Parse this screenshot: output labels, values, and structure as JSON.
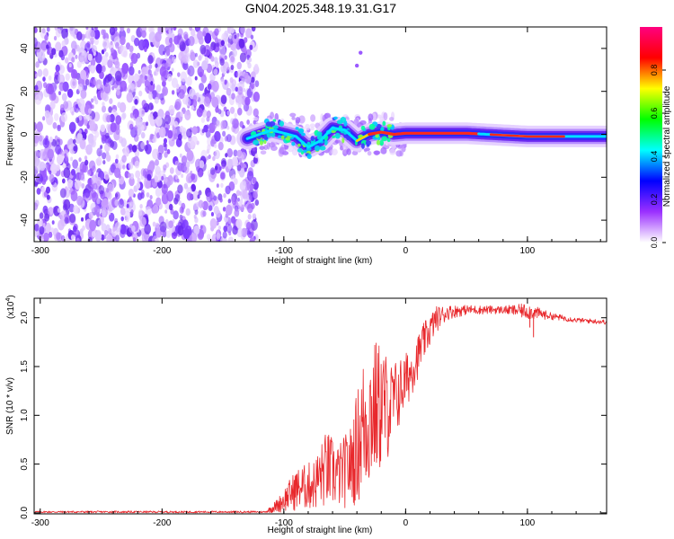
{
  "title": "GN04.2025.348.19.31.G17",
  "chart_data": [
    {
      "type": "heatmap",
      "name": "spectrogram",
      "xlabel": "Height of straight line (km)",
      "ylabel": "Frequency (Hz)",
      "xlim": [
        -305,
        165
      ],
      "ylim": [
        -50,
        50
      ],
      "x_ticks": [
        -300,
        -200,
        -100,
        0,
        100
      ],
      "y_ticks": [
        -40,
        -20,
        0,
        20,
        40
      ],
      "colorbar": {
        "label": "Normalized spectral amplitude",
        "range": [
          0,
          1
        ],
        "ticks": [
          "0.0",
          "0.2",
          "0.4",
          "0.6",
          "0.8"
        ],
        "tick_values": [
          0.0,
          0.2,
          0.4,
          0.6,
          0.8
        ],
        "colors": [
          "#ffffff",
          "#9b30ff",
          "#0000ff",
          "#00ffff",
          "#00ff00",
          "#ffff00",
          "#ff0000",
          "#ff0080"
        ]
      },
      "noise_region_x": [
        -305,
        -125
      ],
      "transition_region_x": [
        -125,
        0
      ],
      "signal_line": [
        {
          "x": -130,
          "y": -2
        },
        {
          "x": -110,
          "y": 2
        },
        {
          "x": -90,
          "y": -1
        },
        {
          "x": -80,
          "y": -6
        },
        {
          "x": -70,
          "y": -3
        },
        {
          "x": -60,
          "y": 3
        },
        {
          "x": -50,
          "y": 2
        },
        {
          "x": -40,
          "y": -3
        },
        {
          "x": -30,
          "y": 0
        },
        {
          "x": -20,
          "y": 1
        },
        {
          "x": -10,
          "y": 0
        },
        {
          "x": 0,
          "y": 0.5
        },
        {
          "x": 50,
          "y": 0.5
        },
        {
          "x": 100,
          "y": -1
        },
        {
          "x": 165,
          "y": -1
        }
      ],
      "outlier_points": [
        {
          "x": -37,
          "y": 38
        },
        {
          "x": -40,
          "y": 32
        }
      ]
    },
    {
      "type": "line",
      "name": "snr",
      "xlabel": "Height of straight line (km)",
      "ylabel": "SNR (10 * v/v)",
      "y_multiplier": "(x10",
      "y_multiplier_exp": "4",
      "y_multiplier_close": ")",
      "xlim": [
        -305,
        165
      ],
      "ylim": [
        -0.01,
        2.2
      ],
      "x_ticks": [
        -300,
        -200,
        -100,
        0,
        100
      ],
      "y_ticks": [
        "0.0",
        "0.5",
        "1.0",
        "1.5",
        "2.0"
      ],
      "y_tick_values": [
        0.0,
        0.5,
        1.0,
        1.5,
        2.0
      ],
      "color": "#e8282c",
      "envelope": [
        {
          "x": -305,
          "lo": 0.0,
          "hi": 0.02
        },
        {
          "x": -115,
          "lo": 0.0,
          "hi": 0.02
        },
        {
          "x": -105,
          "lo": 0.0,
          "hi": 0.15
        },
        {
          "x": -90,
          "lo": 0.02,
          "hi": 0.45
        },
        {
          "x": -75,
          "lo": 0.02,
          "hi": 0.55
        },
        {
          "x": -65,
          "lo": 0.03,
          "hi": 0.85
        },
        {
          "x": -55,
          "lo": 0.03,
          "hi": 0.7
        },
        {
          "x": -45,
          "lo": 0.05,
          "hi": 0.9
        },
        {
          "x": -35,
          "lo": 0.1,
          "hi": 1.6
        },
        {
          "x": -27,
          "lo": 0.25,
          "hi": 1.8
        },
        {
          "x": -20,
          "lo": 0.4,
          "hi": 1.75
        },
        {
          "x": -12,
          "lo": 0.6,
          "hi": 1.55
        },
        {
          "x": -4,
          "lo": 0.9,
          "hi": 1.6
        },
        {
          "x": 5,
          "lo": 1.2,
          "hi": 1.7
        },
        {
          "x": 15,
          "lo": 1.55,
          "hi": 1.95
        },
        {
          "x": 25,
          "lo": 1.85,
          "hi": 2.12
        },
        {
          "x": 35,
          "lo": 1.98,
          "hi": 2.13
        },
        {
          "x": 50,
          "lo": 2.03,
          "hi": 2.13
        },
        {
          "x": 80,
          "lo": 2.04,
          "hi": 2.12
        },
        {
          "x": 100,
          "lo": 1.98,
          "hi": 2.15
        },
        {
          "x": 120,
          "lo": 1.98,
          "hi": 2.05
        },
        {
          "x": 140,
          "lo": 1.95,
          "hi": 2.0
        },
        {
          "x": 165,
          "lo": 1.93,
          "hi": 1.98
        }
      ],
      "dips": [
        {
          "x": 105,
          "y": 1.8
        },
        {
          "x": 102,
          "y": 1.9
        }
      ]
    }
  ]
}
